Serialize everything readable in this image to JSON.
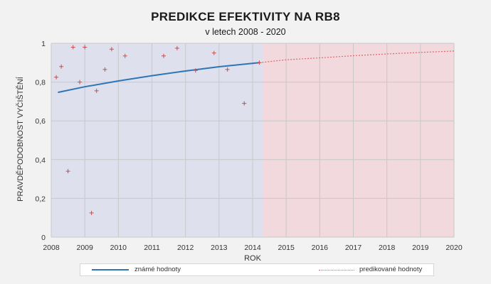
{
  "chart_data": {
    "type": "scatter",
    "title": "PREDIKCE EFEKTIVITY NA RB8",
    "subtitle": "v letech 2008 - 2020",
    "xlabel": "ROK",
    "ylabel": "PRAVDĚPODOBNOST VYČIŠTĚNÍ",
    "xlim": [
      2008,
      2020
    ],
    "ylim": [
      0,
      1
    ],
    "x_ticks": [
      "2008",
      "2009",
      "2010",
      "2011",
      "2012",
      "2013",
      "2014",
      "2015",
      "2016",
      "2017",
      "2018",
      "2019",
      "2020"
    ],
    "y_ticks": [
      "0",
      "0,2",
      "0,4",
      "0,6",
      "0,8",
      "1"
    ],
    "regions": [
      {
        "x_from": 2008,
        "x_to": 2014.3,
        "color": "#dfe0ee"
      },
      {
        "x_from": 2014.3,
        "x_to": 2020,
        "color": "#f1d9de"
      }
    ],
    "points": {
      "color": "#c0504d",
      "x": [
        2008.15,
        2008.3,
        2008.5,
        2008.65,
        2008.85,
        2009.0,
        2009.2,
        2009.35,
        2009.6,
        2009.8,
        2010.2,
        2011.35,
        2011.75,
        2012.3,
        2012.85,
        2013.25,
        2013.75,
        2014.2
      ],
      "y": [
        0.825,
        0.88,
        0.34,
        0.98,
        0.8,
        0.98,
        0.125,
        0.755,
        0.865,
        0.97,
        0.935,
        0.935,
        0.975,
        0.86,
        0.95,
        0.865,
        0.69,
        0.9
      ]
    },
    "series": [
      {
        "name": "známé hodnoty",
        "style": "solid",
        "color": "#2e75b6",
        "x": [
          2008.2,
          2009,
          2010,
          2011,
          2012,
          2013,
          2014.2
        ],
        "y": [
          0.747,
          0.776,
          0.806,
          0.833,
          0.857,
          0.879,
          0.9
        ]
      },
      {
        "name": "predikované hodnoty",
        "style": "dotted",
        "color": "#e06666",
        "x": [
          2014.2,
          2015,
          2016,
          2017,
          2018,
          2019,
          2020
        ],
        "y": [
          0.9,
          0.915,
          0.925,
          0.936,
          0.945,
          0.953,
          0.96
        ]
      }
    ]
  }
}
